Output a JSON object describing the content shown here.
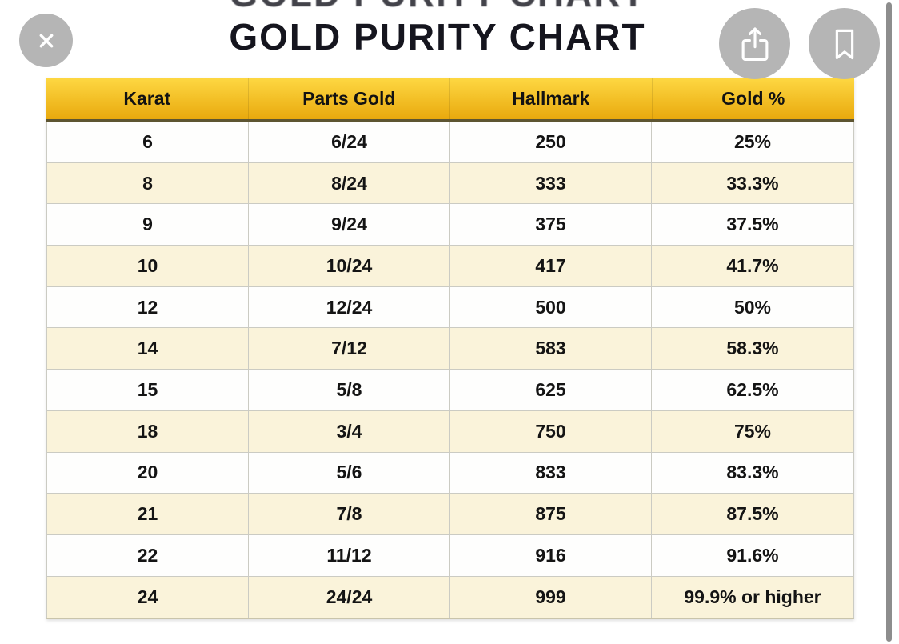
{
  "page": {
    "title": "GOLD PURITY CHART"
  },
  "toolbar": {
    "close_icon": "close-x",
    "share_icon": "share-arrow-up",
    "bookmark_icon": "bookmark-outline"
  },
  "table": {
    "columns": [
      "Karat",
      "Parts Gold",
      "Hallmark",
      "Gold %"
    ],
    "rows": [
      [
        "6",
        "6/24",
        "250",
        "25%"
      ],
      [
        "8",
        "8/24",
        "333",
        "33.3%"
      ],
      [
        "9",
        "9/24",
        "375",
        "37.5%"
      ],
      [
        "10",
        "10/24",
        "417",
        "41.7%"
      ],
      [
        "12",
        "12/24",
        "500",
        "50%"
      ],
      [
        "14",
        "7/12",
        "583",
        "58.3%"
      ],
      [
        "15",
        "5/8",
        "625",
        "62.5%"
      ],
      [
        "18",
        "3/4",
        "750",
        "75%"
      ],
      [
        "20",
        "5/6",
        "833",
        "83.3%"
      ],
      [
        "21",
        "7/8",
        "875",
        "87.5%"
      ],
      [
        "22",
        "11/12",
        "916",
        "91.6%"
      ],
      [
        "24",
        "24/24",
        "999",
        "99.9% or higher"
      ]
    ]
  },
  "chart_data": {
    "type": "table",
    "title": "GOLD PURITY CHART",
    "columns": [
      "Karat",
      "Parts Gold",
      "Hallmark",
      "Gold %"
    ],
    "rows": [
      [
        "6",
        "6/24",
        "250",
        "25%"
      ],
      [
        "8",
        "8/24",
        "333",
        "33.3%"
      ],
      [
        "9",
        "9/24",
        "375",
        "37.5%"
      ],
      [
        "10",
        "10/24",
        "417",
        "41.7%"
      ],
      [
        "12",
        "12/24",
        "500",
        "50%"
      ],
      [
        "14",
        "7/12",
        "583",
        "58.3%"
      ],
      [
        "15",
        "5/8",
        "625",
        "62.5%"
      ],
      [
        "18",
        "3/4",
        "750",
        "75%"
      ],
      [
        "20",
        "5/6",
        "833",
        "83.3%"
      ],
      [
        "21",
        "7/8",
        "875",
        "87.5%"
      ],
      [
        "22",
        "11/12",
        "916",
        "91.6%"
      ],
      [
        "24",
        "24/24",
        "999",
        "99.9% or higher"
      ]
    ]
  },
  "colors": {
    "header_gradient_top": "#FED843",
    "header_gradient_bottom": "#E9A90D",
    "row_alt": "#FAF3DA",
    "header_border": "#5D5531",
    "grid_line": "#CBCBC3",
    "button_gray": "#B5B5B5",
    "scrollbar": "#8D8D8D",
    "text": "#15151E"
  }
}
